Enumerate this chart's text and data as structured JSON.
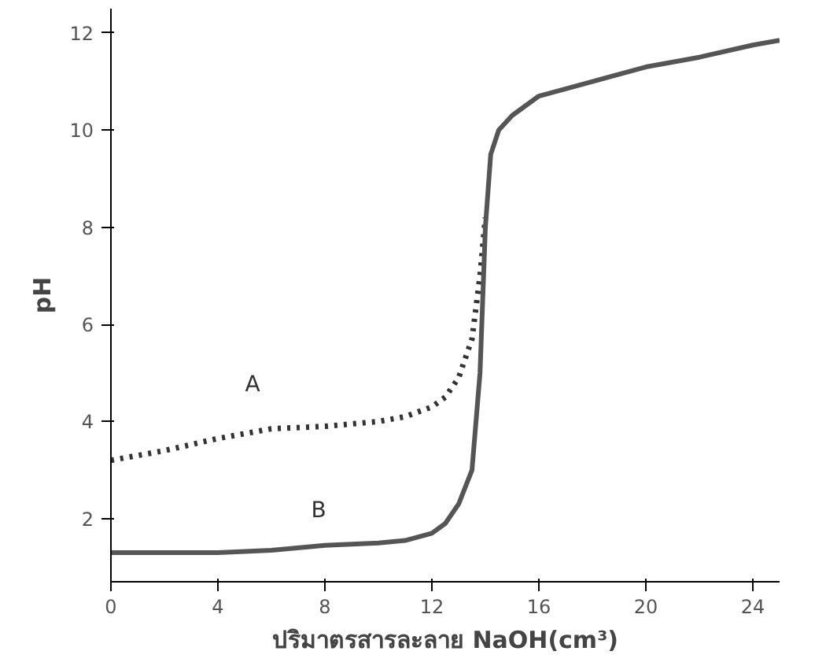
{
  "chart_data": {
    "type": "line",
    "xlabel": "ปริมาตรสารละลาย NaOH(cm³)",
    "ylabel": "pH",
    "xlim": [
      0,
      25
    ],
    "ylim": [
      0.7,
      12.5
    ],
    "xticks": [
      0,
      4,
      8,
      12,
      16,
      20,
      24
    ],
    "yticks": [
      2,
      4,
      6,
      8,
      10,
      12
    ],
    "grid": false,
    "marker": "none",
    "series": [
      {
        "color": "#333333",
        "line_style": "dotted",
        "x": [
          0,
          2,
          4,
          6,
          8,
          10,
          11,
          12,
          12.5,
          13,
          13.5,
          13.8,
          14
        ],
        "values": [
          3.2,
          3.4,
          3.65,
          3.85,
          3.9,
          4.0,
          4.1,
          4.3,
          4.5,
          4.9,
          5.7,
          7.0,
          8.2
        ]
      },
      {
        "color": "#555555",
        "line_style": "solid",
        "x": [
          0,
          2,
          4,
          6,
          8,
          10,
          11,
          12,
          12.5,
          13,
          13.5,
          13.8,
          14,
          14.2,
          14.5,
          15,
          16,
          18,
          20,
          22,
          24,
          25
        ],
        "values": [
          1.3,
          1.3,
          1.3,
          1.35,
          1.45,
          1.5,
          1.55,
          1.7,
          1.9,
          2.3,
          3.0,
          5.0,
          8.0,
          9.5,
          10.0,
          10.3,
          10.7,
          11.0,
          11.3,
          11.5,
          11.75,
          11.85
        ]
      }
    ],
    "annotations": [
      "A",
      "B"
    ]
  }
}
